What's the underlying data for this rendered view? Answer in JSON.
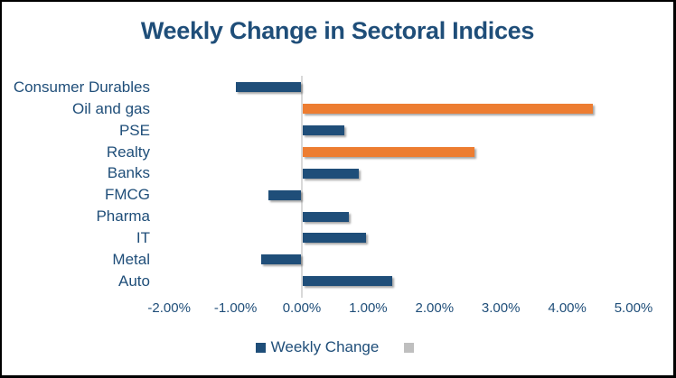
{
  "chart_data": {
    "type": "bar",
    "orientation": "horizontal",
    "title": "Weekly Change in Sectoral Indices",
    "categories": [
      "Consumer Durables",
      "Oil and gas",
      "PSE",
      "Realty",
      "Banks",
      "FMCG",
      "Pharma",
      "IT",
      "Metal",
      "Auto"
    ],
    "values": [
      -0.98,
      4.38,
      0.63,
      2.59,
      0.85,
      -0.49,
      0.7,
      0.95,
      -0.6,
      1.35
    ],
    "value_unit": "percent",
    "bar_colors": [
      "#1F4E79",
      "#ED7D31",
      "#1F4E79",
      "#ED7D31",
      "#1F4E79",
      "#1F4E79",
      "#1F4E79",
      "#1F4E79",
      "#1F4E79",
      "#1F4E79"
    ],
    "x_ticks": [
      "-2.00%",
      "-1.00%",
      "0.00%",
      "1.00%",
      "2.00%",
      "3.00%",
      "4.00%",
      "5.00%"
    ],
    "xlim": [
      -2,
      5
    ],
    "grid": false,
    "legend": {
      "position": "bottom",
      "entries": [
        {
          "label": "Weekly Change",
          "color": "#1F4E79"
        },
        {
          "label": "",
          "color": "#BFBFBF"
        }
      ]
    },
    "colors": {
      "text": "#1F4E79",
      "highlight": "#ED7D31",
      "axis_line": "#D9D9D9",
      "border": "#000000",
      "background": "#FFFFFF"
    }
  }
}
